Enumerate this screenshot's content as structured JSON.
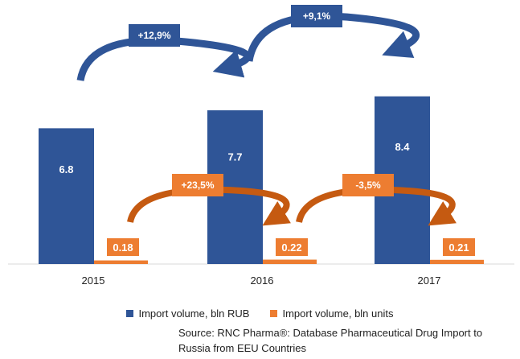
{
  "chart_data": {
    "type": "bar",
    "categories": [
      "2015",
      "2016",
      "2017"
    ],
    "series": [
      {
        "name": "Import volume, bln RUB",
        "values": [
          6.8,
          7.7,
          8.4
        ],
        "labels": [
          "6.8",
          "7.7",
          "8.4"
        ],
        "color": "#2f5597"
      },
      {
        "name": "Import volume, bln units",
        "values": [
          0.18,
          0.22,
          0.21
        ],
        "labels": [
          "0.18",
          "0.22",
          "0.21"
        ],
        "color": "#ed7d31"
      }
    ],
    "ylim": [
      0,
      10
    ],
    "growth": {
      "rub": [
        "+12,9%",
        "+9,1%"
      ],
      "units": [
        "+23,5%",
        "-3,5%"
      ]
    },
    "legend_position": "bottom",
    "grid": false
  },
  "source_text": "Source: RNC Pharma®: Database Pharmaceutical Drug Import to Russia from EEU Countries"
}
